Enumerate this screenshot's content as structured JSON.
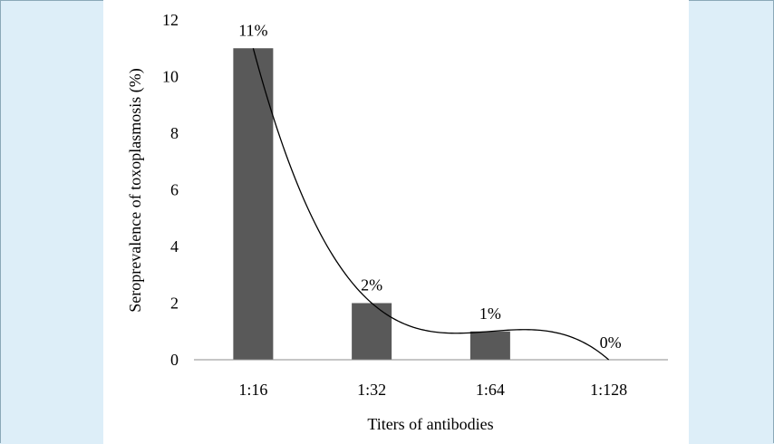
{
  "chart_data": {
    "type": "bar",
    "categories": [
      "1:16",
      "1:32",
      "1:64",
      "1:128"
    ],
    "values": [
      11,
      2,
      1,
      0
    ],
    "data_labels": [
      "11%",
      "2%",
      "1%",
      "0%"
    ],
    "xlabel": "Titers of antibodies",
    "ylabel": "Seroprevalence of toxoplasmosis (%)",
    "ylim": [
      0,
      12
    ],
    "yticks": [
      0,
      2,
      4,
      6,
      8,
      10,
      12
    ],
    "grid": false,
    "legend": "none",
    "trendline": "polynomial",
    "bar_color": "#595959"
  }
}
